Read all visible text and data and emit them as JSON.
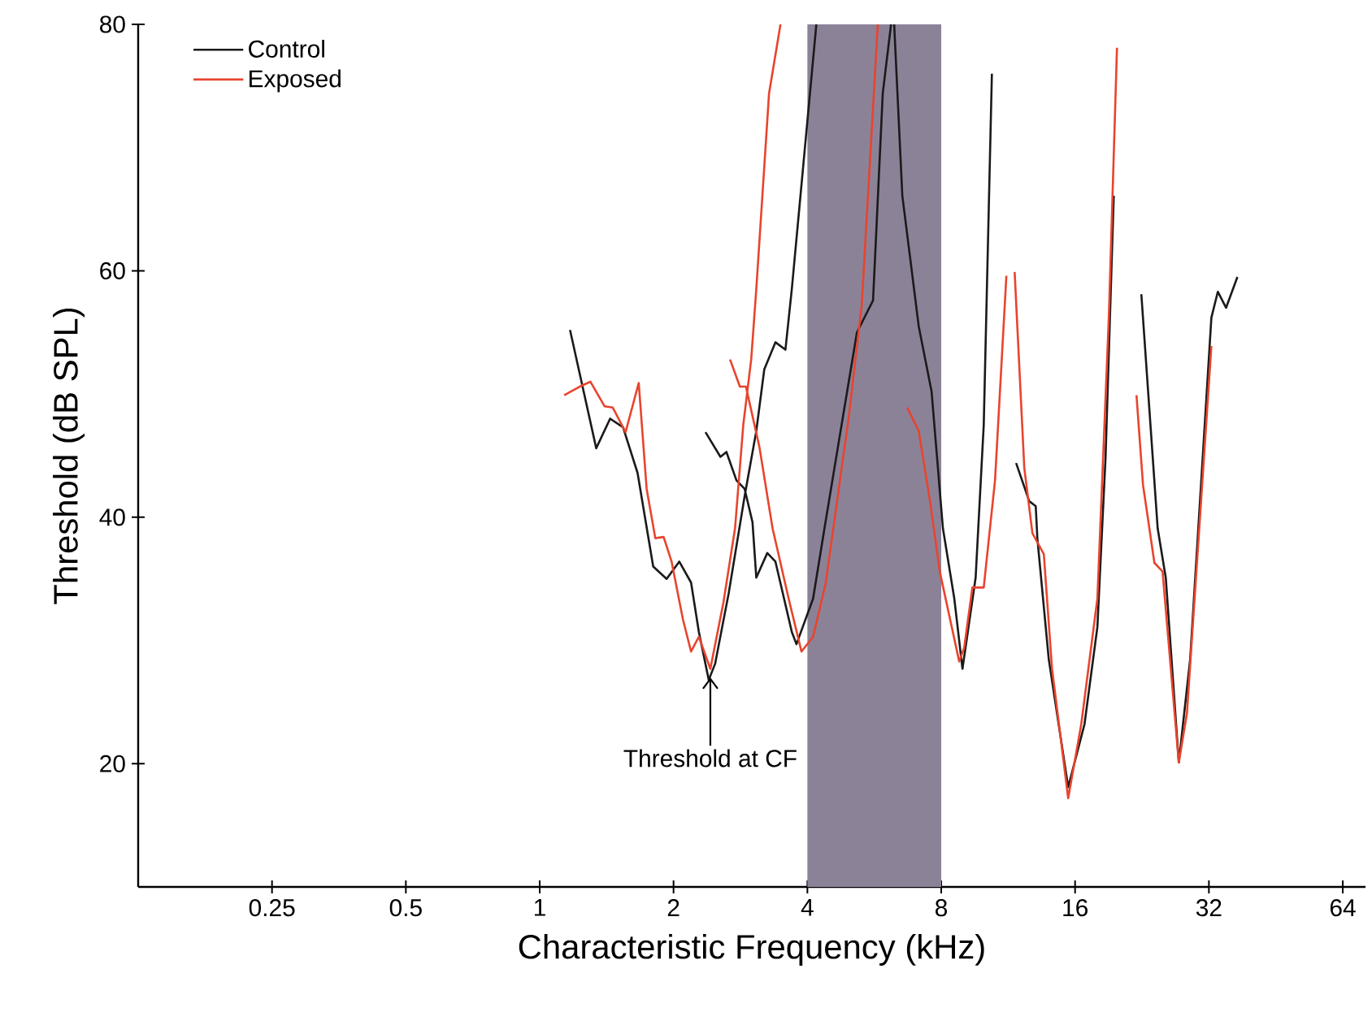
{
  "chart_data": {
    "type": "line",
    "xlabel": "Characteristic Frequency (kHz)",
    "ylabel": "Threshold (dB SPL)",
    "log": "x",
    "xlim": [
      0.125,
      72
    ],
    "ylim": [
      10,
      80
    ],
    "xticks": [
      0.25,
      0.5,
      1,
      2,
      4,
      8,
      16,
      32,
      64
    ],
    "yticks": [
      20,
      40,
      60,
      80
    ],
    "legend": "top left",
    "grid": false,
    "line_style": "solid",
    "marker": "none",
    "series": [
      {
        "name": "Control",
        "color": "#1a1a1a",
        "x": [
          1.17,
          1.34,
          1.44,
          1.54,
          1.66,
          1.8,
          1.93,
          2.06,
          2.19,
          2.28,
          2.4,
          2.48,
          2.66,
          2.89,
          3.07,
          3.2,
          3.39,
          3.57,
          3.69,
          4.19,
          null,
          2.36,
          2.55,
          2.63,
          2.77,
          2.89,
          3.01,
          3.07,
          3.25,
          3.39,
          3.69,
          3.78,
          4.12,
          4.37,
          4.75,
          5.17,
          5.62,
          5.91,
          6.17,
          null,
          6.27,
          6.54,
          7.12,
          7.61,
          8.07,
          8.56,
          8.93,
          9.56,
          9.97,
          10.4,
          null,
          11.79,
          12.62,
          13.05,
          13.16,
          13.96,
          15.44,
          16.8,
          17.96,
          18.74,
          19.55,
          null,
          22.55,
          24.54,
          25.59,
          27.38,
          29.04,
          32.41,
          33.51,
          34.97,
          37.09
        ],
        "values": [
          55.2,
          45.6,
          48,
          47.3,
          43.6,
          36,
          35,
          36.4,
          34.7,
          30.7,
          26.8,
          28.1,
          33.8,
          41.7,
          47,
          52,
          54.2,
          53.6,
          58.5,
          80,
          null,
          46.9,
          44.9,
          45.3,
          43,
          42.3,
          39.6,
          35.1,
          37.1,
          36.4,
          30.7,
          29.7,
          33.4,
          39.1,
          47,
          55,
          57.6,
          74.4,
          80,
          null,
          80,
          66.1,
          55.5,
          50.2,
          39.1,
          33.4,
          27.7,
          35.1,
          47.5,
          76,
          null,
          44.4,
          41.3,
          40.9,
          38.3,
          28.5,
          18.1,
          23.2,
          31.1,
          44.9,
          66.1,
          null,
          58.1,
          39.1,
          35.1,
          20.1,
          28.5,
          56.2,
          58.3,
          57,
          59.5
        ]
      },
      {
        "name": "Exposed",
        "color": "#e8442e",
        "x": [
          1.135,
          1.23,
          1.3,
          1.4,
          1.46,
          1.56,
          1.67,
          1.74,
          1.82,
          1.9,
          1.98,
          2.1,
          2.19,
          2.28,
          2.42,
          2.59,
          2.75,
          2.87,
          2.99,
          3.07,
          3.28,
          3.48,
          null,
          2.68,
          2.82,
          2.91,
          3.12,
          3.34,
          3.63,
          3.88,
          4.12,
          4.4,
          4.95,
          5.3,
          5.76,
          null,
          6.71,
          7.12,
          7.55,
          7.94,
          8.78,
          9.01,
          9.4,
          9.97,
          10.57,
          11.21,
          null,
          11.7,
          12.3,
          12.83,
          13.61,
          14.2,
          15.44,
          16.52,
          17.96,
          19.06,
          19.88,
          null,
          21.99,
          22.75,
          24.13,
          25.17,
          27.38,
          28.56,
          32.41
        ],
        "values": [
          49.9,
          50.6,
          51,
          49,
          48.9,
          46.9,
          50.9,
          42.3,
          38.3,
          38.4,
          36.4,
          31.7,
          29.1,
          30.3,
          27.7,
          33.1,
          39.1,
          47.5,
          52.8,
          58.5,
          74.4,
          80,
          null,
          52.8,
          50.6,
          50.6,
          45.7,
          39.1,
          33.4,
          29.1,
          30.3,
          34.7,
          48,
          57.2,
          80,
          null,
          48.9,
          47,
          41.3,
          35.6,
          28.3,
          29.4,
          34.3,
          34.3,
          43,
          59.6,
          null,
          59.9,
          44,
          38.7,
          37,
          27.7,
          17.2,
          23.2,
          33.4,
          56.3,
          78.1,
          null,
          49.9,
          42.6,
          36.3,
          35.6,
          20.1,
          24.1,
          53.9
        ]
      }
    ],
    "bands": [
      {
        "axis": "x",
        "from": 4,
        "to": 8,
        "color": "#8c8298"
      }
    ],
    "annotations": [
      {
        "text": "Threshold at CF",
        "x": 2.42,
        "y": 27
      }
    ]
  }
}
